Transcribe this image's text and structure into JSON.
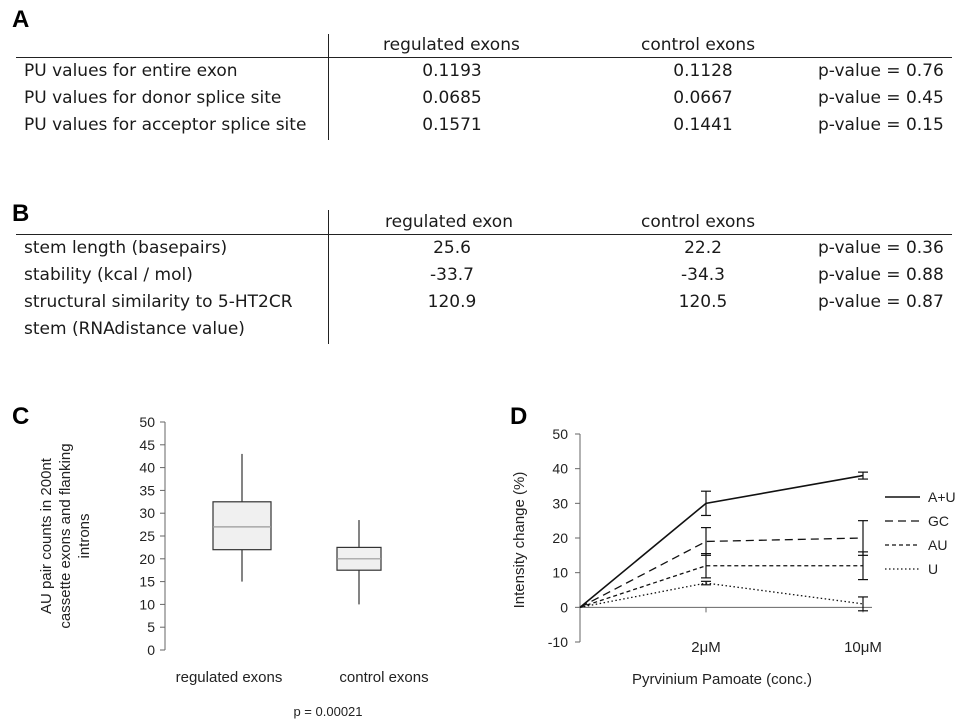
{
  "panel_a": {
    "label": "A",
    "headers": [
      "regulated exons",
      "control exons"
    ],
    "rows": [
      {
        "name": [
          "PU values for entire exon"
        ],
        "regulated": "0.1193",
        "control": "0.1128",
        "p": "p-value = 0.76"
      },
      {
        "name": [
          "PU values for donor splice site"
        ],
        "regulated": "0.0685",
        "control": "0.0667",
        "p": "p-value = 0.45"
      },
      {
        "name": [
          "PU values for acceptor splice site"
        ],
        "regulated": "0.1571",
        "control": "0.1441",
        "p": "p-value = 0.15"
      }
    ]
  },
  "panel_b": {
    "label": "B",
    "headers": [
      "regulated exon",
      "control exons"
    ],
    "rows": [
      {
        "name": [
          "stem length (basepairs)"
        ],
        "regulated": "25.6",
        "control": "22.2",
        "p": "p-value = 0.36"
      },
      {
        "name": [
          "stability (kcal / mol)"
        ],
        "regulated": "-33.7",
        "control": "-34.3",
        "p": "p-value = 0.88"
      },
      {
        "name": [
          "structural similarity to 5-HT2CR",
          "stem (RNAdistance value)"
        ],
        "regulated": "120.9",
        "control": "120.5",
        "p": "p-value = 0.87"
      }
    ]
  },
  "chart_data": [
    {
      "panel": "C",
      "type": "box",
      "ylabel": "AU pair counts in 200nt cassette exons and flanking introns",
      "ylabel_lines": [
        "AU pair counts in 200nt",
        "cassette exons and flanking",
        "introns"
      ],
      "ylim": [
        0,
        50
      ],
      "yticks": [
        0,
        5,
        10,
        15,
        20,
        25,
        30,
        35,
        40,
        45,
        50
      ],
      "categories": [
        "regulated exons",
        "control exons"
      ],
      "boxes": [
        {
          "whisker_low": 15,
          "q1": 22,
          "median": 27,
          "q3": 32.5,
          "whisker_high": 43
        },
        {
          "whisker_low": 10,
          "q1": 17.5,
          "median": 20,
          "q3": 22.5,
          "whisker_high": 28.5
        }
      ],
      "annotation": "p = 0.00021",
      "colors": {
        "box_fill": "#f0f0f0",
        "median": "#999999",
        "stroke": "#333333"
      }
    },
    {
      "panel": "D",
      "type": "line",
      "xlabel": "Pyrvinium Pamoate (conc.)",
      "ylabel": "Intensity change (%)",
      "ylim": [
        -10,
        50
      ],
      "yticks": [
        -10,
        0,
        10,
        20,
        30,
        40,
        50
      ],
      "x_tick_labels": [
        "2μM",
        "10μM"
      ],
      "legend_position": "right",
      "series": [
        {
          "name": "A+U",
          "dash": "solid",
          "values": [
            0,
            30,
            38
          ],
          "errors": [
            0,
            3.5,
            1
          ]
        },
        {
          "name": "GC",
          "dash": "dashed",
          "values": [
            0,
            19,
            20
          ],
          "errors": [
            0,
            4,
            5
          ]
        },
        {
          "name": "AU",
          "dash": "short-dashed",
          "values": [
            0,
            12,
            12
          ],
          "errors": [
            0,
            3.5,
            4
          ]
        },
        {
          "name": "U",
          "dash": "dotted",
          "values": [
            0,
            7,
            1
          ],
          "errors": [
            0,
            0.5,
            2
          ]
        }
      ]
    }
  ]
}
